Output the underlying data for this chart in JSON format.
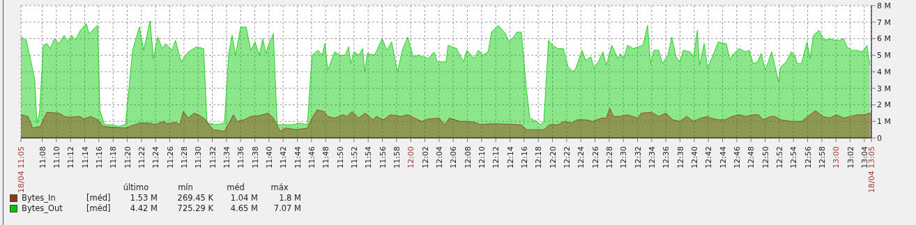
{
  "chart_data": {
    "type": "area",
    "xlim": [
      11.0833,
      13.0833
    ],
    "xticks": [
      {
        "value": 11.0833,
        "label": "18/04 11:05"
      },
      {
        "value": 11.1333,
        "label": "11:08"
      },
      {
        "value": 11.1667,
        "label": "11:10"
      },
      {
        "value": 11.2,
        "label": "11:12"
      },
      {
        "value": 11.2333,
        "label": "11:14"
      },
      {
        "value": 11.2667,
        "label": "11:16"
      },
      {
        "value": 11.3,
        "label": "11:18"
      },
      {
        "value": 11.3333,
        "label": "11:20"
      },
      {
        "value": 11.3667,
        "label": "11:22"
      },
      {
        "value": 11.4,
        "label": "11:24"
      },
      {
        "value": 11.4333,
        "label": "11:26"
      },
      {
        "value": 11.4667,
        "label": "11:28"
      },
      {
        "value": 11.5,
        "label": "11:30"
      },
      {
        "value": 11.5333,
        "label": "11:32"
      },
      {
        "value": 11.5667,
        "label": "11:34"
      },
      {
        "value": 11.6,
        "label": "11:36"
      },
      {
        "value": 11.6333,
        "label": "11:38"
      },
      {
        "value": 11.6667,
        "label": "11:40"
      },
      {
        "value": 11.7,
        "label": "11:42"
      },
      {
        "value": 11.7333,
        "label": "11:44"
      },
      {
        "value": 11.7667,
        "label": "11:46"
      },
      {
        "value": 11.8,
        "label": "11:48"
      },
      {
        "value": 11.8333,
        "label": "11:50"
      },
      {
        "value": 11.8667,
        "label": "11:52"
      },
      {
        "value": 11.9,
        "label": "11:54"
      },
      {
        "value": 11.9333,
        "label": "11:56"
      },
      {
        "value": 11.9667,
        "label": "11:58"
      },
      {
        "value": 12,
        "label": "12:00"
      },
      {
        "value": 12.0333,
        "label": "12:02"
      },
      {
        "value": 12.0667,
        "label": "12:04"
      },
      {
        "value": 12.1,
        "label": "12:06"
      },
      {
        "value": 12.1333,
        "label": "12:08"
      },
      {
        "value": 12.1667,
        "label": "12:10"
      },
      {
        "value": 12.2,
        "label": "12:12"
      },
      {
        "value": 12.2333,
        "label": "12:14"
      },
      {
        "value": 12.2667,
        "label": "12:16"
      },
      {
        "value": 12.3,
        "label": "12:18"
      },
      {
        "value": 12.3333,
        "label": "12:20"
      },
      {
        "value": 12.3667,
        "label": "12:22"
      },
      {
        "value": 12.4,
        "label": "12:24"
      },
      {
        "value": 12.4333,
        "label": "12:26"
      },
      {
        "value": 12.4667,
        "label": "12:28"
      },
      {
        "value": 12.5,
        "label": "12:30"
      },
      {
        "value": 12.5333,
        "label": "12:32"
      },
      {
        "value": 12.5667,
        "label": "12:34"
      },
      {
        "value": 12.6,
        "label": "12:36"
      },
      {
        "value": 12.6333,
        "label": "12:38"
      },
      {
        "value": 12.6667,
        "label": "12:40"
      },
      {
        "value": 12.7,
        "label": "12:42"
      },
      {
        "value": 12.7333,
        "label": "12:44"
      },
      {
        "value": 12.7667,
        "label": "12:46"
      },
      {
        "value": 12.8,
        "label": "12:48"
      },
      {
        "value": 12.8333,
        "label": "12:50"
      },
      {
        "value": 12.8667,
        "label": "12:52"
      },
      {
        "value": 12.9,
        "label": "12:54"
      },
      {
        "value": 12.9333,
        "label": "12:56"
      },
      {
        "value": 12.9667,
        "label": "12:58"
      },
      {
        "value": 13,
        "label": "13:00"
      },
      {
        "value": 13.0333,
        "label": "13:02"
      },
      {
        "value": 13.0667,
        "label": "13:04"
      },
      {
        "value": 13.0833,
        "label": "18/04 13:05"
      }
    ],
    "ylim": [
      0,
      8
    ],
    "yticks": [
      0,
      {
        "value": 1,
        "label": "1 M"
      },
      {
        "value": 2,
        "label": "2 M"
      },
      {
        "value": 3,
        "label": "3 M"
      },
      {
        "value": 4,
        "label": "4 M"
      },
      {
        "value": 5,
        "label": "5 M"
      },
      {
        "value": 6,
        "label": "6 M"
      },
      {
        "value": 7,
        "label": "7 M"
      },
      {
        "value": 8,
        "label": "8 M"
      }
    ],
    "grid": true,
    "legend": "bottom left",
    "annotations": [
      "último",
      "mín",
      "méd",
      "máx",
      "[méd]",
      "1.53 M",
      "269.45 K",
      "1.04 M",
      "1.8 M",
      "[méd]",
      "4.42 M",
      "725.29 K",
      "4.65 M",
      "7.07 M"
    ],
    "series": [
      {
        "name": "Bytes_Out",
        "color": "#00c800",
        "x": [
          11.0833,
          11.096,
          11.108,
          11.116,
          11.121,
          11.127,
          11.136,
          11.145,
          11.152,
          11.162,
          11.173,
          11.185,
          11.193,
          11.203,
          11.211,
          11.223,
          11.237,
          11.244,
          11.255,
          11.264,
          11.269,
          11.28,
          11.296,
          11.313,
          11.329,
          11.346,
          11.362,
          11.372,
          11.387,
          11.395,
          11.405,
          11.416,
          11.424,
          11.439,
          11.447,
          11.46,
          11.477,
          11.496,
          11.513,
          11.521,
          11.542,
          11.562,
          11.572,
          11.58,
          11.588,
          11.6,
          11.613,
          11.624,
          11.634,
          11.644,
          11.652,
          11.66,
          11.665,
          11.677,
          11.686,
          11.706,
          11.723,
          11.739,
          11.757,
          11.768,
          11.782,
          11.792,
          11.798,
          11.805,
          11.821,
          11.834,
          11.846,
          11.854,
          11.859,
          11.867,
          11.878,
          11.887,
          11.892,
          11.898,
          11.915,
          11.933,
          11.944,
          11.955,
          11.969,
          11.98,
          11.993,
          12.006,
          12.018,
          12.042,
          12.055,
          12.062,
          12.083,
          12.088,
          12.108,
          12.124,
          12.132,
          12.149,
          12.159,
          12.17,
          12.182,
          12.19,
          12.206,
          12.223,
          12.231,
          12.239,
          12.25,
          12.26,
          12.272,
          12.28,
          12.296,
          12.305,
          12.313,
          12.324,
          12.333,
          12.346,
          12.359,
          12.37,
          12.382,
          12.388,
          12.403,
          12.411,
          12.424,
          12.431,
          12.441,
          12.452,
          12.46,
          12.473,
          12.487,
          12.493,
          12.501,
          12.51,
          12.523,
          12.546,
          12.557,
          12.564,
          12.572,
          12.583,
          12.592,
          12.605,
          12.614,
          12.624,
          12.633,
          12.641,
          12.657,
          12.665,
          12.674,
          12.679,
          12.69,
          12.698,
          12.714,
          12.723,
          12.742,
          12.751,
          12.756,
          12.772,
          12.788,
          12.796,
          12.805,
          12.816,
          12.824,
          12.834,
          12.842,
          12.849,
          12.857,
          12.865,
          12.87,
          12.883,
          12.895,
          12.903,
          12.909,
          12.919,
          12.932,
          12.939,
          12.947,
          12.96,
          12.973,
          12.985,
          12.998,
          13.008,
          13.018,
          13.026,
          13.037,
          13.05,
          13.062,
          13.073,
          13.08
        ],
        "values": [
          6.1,
          5.9,
          4.5,
          3.5,
          0.9,
          1.5,
          5.6,
          5.7,
          5.4,
          6.0,
          5.7,
          6.2,
          5.8,
          6.2,
          5.9,
          6.5,
          6.9,
          6.3,
          6.6,
          6.8,
          1.7,
          0.8,
          0.8,
          0.7,
          0.8,
          5.3,
          6.7,
          5.3,
          7.07,
          4.8,
          6.1,
          5.4,
          5.7,
          5.3,
          5.9,
          4.6,
          5.2,
          5.5,
          5.4,
          0.9,
          0.8,
          0.9,
          5.1,
          6.2,
          5.0,
          6.7,
          6.7,
          5.3,
          5.8,
          5.0,
          6.0,
          5.1,
          5.6,
          6.3,
          0.8,
          0.8,
          0.8,
          0.9,
          0.8,
          5.0,
          5.3,
          5.0,
          5.7,
          4.1,
          5.2,
          5.0,
          5.0,
          5.5,
          4.5,
          5.2,
          5.0,
          5.4,
          4.0,
          5.1,
          5.0,
          6.0,
          5.3,
          5.8,
          4.0,
          5.3,
          6.1,
          4.9,
          5.0,
          4.8,
          5.2,
          4.6,
          4.6,
          5.6,
          5.4,
          4.6,
          5.3,
          4.8,
          5.3,
          5.0,
          5.2,
          6.4,
          6.8,
          6.3,
          5.8,
          6.0,
          6.4,
          6.4,
          3.0,
          1.2,
          1.0,
          0.8,
          1.0,
          5.9,
          5.6,
          5.4,
          5.4,
          4.3,
          4.0,
          4.2,
          5.3,
          4.7,
          4.9,
          4.2,
          4.6,
          5.2,
          4.4,
          5.6,
          4.8,
          5.1,
          4.8,
          5.6,
          5.4,
          5.6,
          6.8,
          4.5,
          5.3,
          5.3,
          4.5,
          5.0,
          6.1,
          4.9,
          4.6,
          5.3,
          5.2,
          4.9,
          6.5,
          4.4,
          5.7,
          4.2,
          5.2,
          5.8,
          5.7,
          4.7,
          5.0,
          5.4,
          5.2,
          5.3,
          4.5,
          4.6,
          5.1,
          4.1,
          4.7,
          5.2,
          4.3,
          3.4,
          4.3,
          4.6,
          5.2,
          5.0,
          4.5,
          4.5,
          5.8,
          4.8,
          6.2,
          6.5,
          5.9,
          6.0,
          5.9,
          5.9,
          6.0,
          5.5,
          5.3,
          5.3,
          5.2,
          5.6,
          4.42
        ]
      },
      {
        "name": "Bytes_In",
        "color": "#8b3a0f",
        "x": [
          11.0833,
          11.1,
          11.111,
          11.129,
          11.144,
          11.173,
          11.186,
          11.198,
          11.223,
          11.231,
          11.247,
          11.264,
          11.277,
          11.296,
          11.329,
          11.362,
          11.387,
          11.398,
          11.419,
          11.428,
          11.447,
          11.457,
          11.465,
          11.477,
          11.49,
          11.501,
          11.518,
          11.534,
          11.55,
          11.562,
          11.583,
          11.592,
          11.608,
          11.624,
          11.644,
          11.665,
          11.677,
          11.693,
          11.706,
          11.731,
          11.757,
          11.768,
          11.78,
          11.796,
          11.805,
          11.821,
          11.841,
          11.85,
          11.862,
          11.877,
          11.893,
          11.911,
          11.919,
          11.936,
          11.952,
          11.977,
          11.993,
          12.009,
          12.026,
          12.042,
          12.067,
          12.08,
          12.091,
          12.116,
          12.132,
          12.149,
          12.165,
          12.182,
          12.206,
          12.26,
          12.272,
          12.296,
          12.313,
          12.326,
          12.346,
          12.362,
          12.378,
          12.391,
          12.411,
          12.428,
          12.449,
          12.46,
          12.468,
          12.477,
          12.493,
          12.51,
          12.534,
          12.542,
          12.567,
          12.583,
          12.6,
          12.616,
          12.633,
          12.649,
          12.665,
          12.682,
          12.698,
          12.706,
          12.723,
          12.739,
          12.756,
          12.772,
          12.788,
          12.805,
          12.818,
          12.829,
          12.846,
          12.857,
          12.87,
          12.895,
          12.919,
          12.936,
          12.952,
          12.969,
          12.985,
          13.001,
          13.018,
          13.034,
          13.05,
          13.067,
          13.0833
        ],
        "values": [
          1.4,
          1.3,
          0.6,
          0.7,
          1.55,
          1.5,
          1.3,
          1.25,
          1.3,
          1.15,
          1.3,
          1.1,
          0.7,
          0.65,
          0.6,
          0.9,
          0.9,
          0.8,
          1.0,
          0.85,
          0.95,
          0.8,
          1.6,
          1.2,
          1.5,
          1.4,
          1.1,
          0.5,
          0.45,
          0.4,
          1.4,
          1.0,
          1.1,
          1.3,
          1.35,
          1.5,
          1.2,
          0.4,
          0.6,
          0.5,
          0.6,
          1.2,
          1.7,
          1.6,
          1.3,
          1.2,
          1.4,
          1.3,
          1.6,
          1.2,
          1.5,
          1.1,
          1.3,
          1.1,
          1.4,
          1.3,
          1.4,
          1.2,
          1.0,
          1.15,
          1.2,
          0.8,
          1.2,
          1.0,
          1.0,
          0.95,
          0.8,
          0.85,
          0.85,
          0.8,
          0.5,
          0.5,
          0.5,
          0.8,
          0.8,
          1.0,
          0.9,
          1.1,
          1.1,
          1.0,
          1.2,
          1.2,
          1.8,
          1.3,
          1.3,
          1.4,
          1.2,
          1.5,
          1.55,
          1.3,
          1.5,
          1.1,
          1.0,
          1.3,
          1.0,
          1.2,
          1.3,
          1.2,
          1.1,
          1.1,
          1.3,
          1.4,
          1.3,
          1.4,
          1.4,
          1.1,
          1.3,
          1.3,
          1.1,
          1.0,
          1.0,
          1.35,
          1.65,
          1.3,
          1.2,
          1.4,
          1.2,
          1.3,
          1.4,
          1.4,
          1.53
        ]
      }
    ]
  }
}
